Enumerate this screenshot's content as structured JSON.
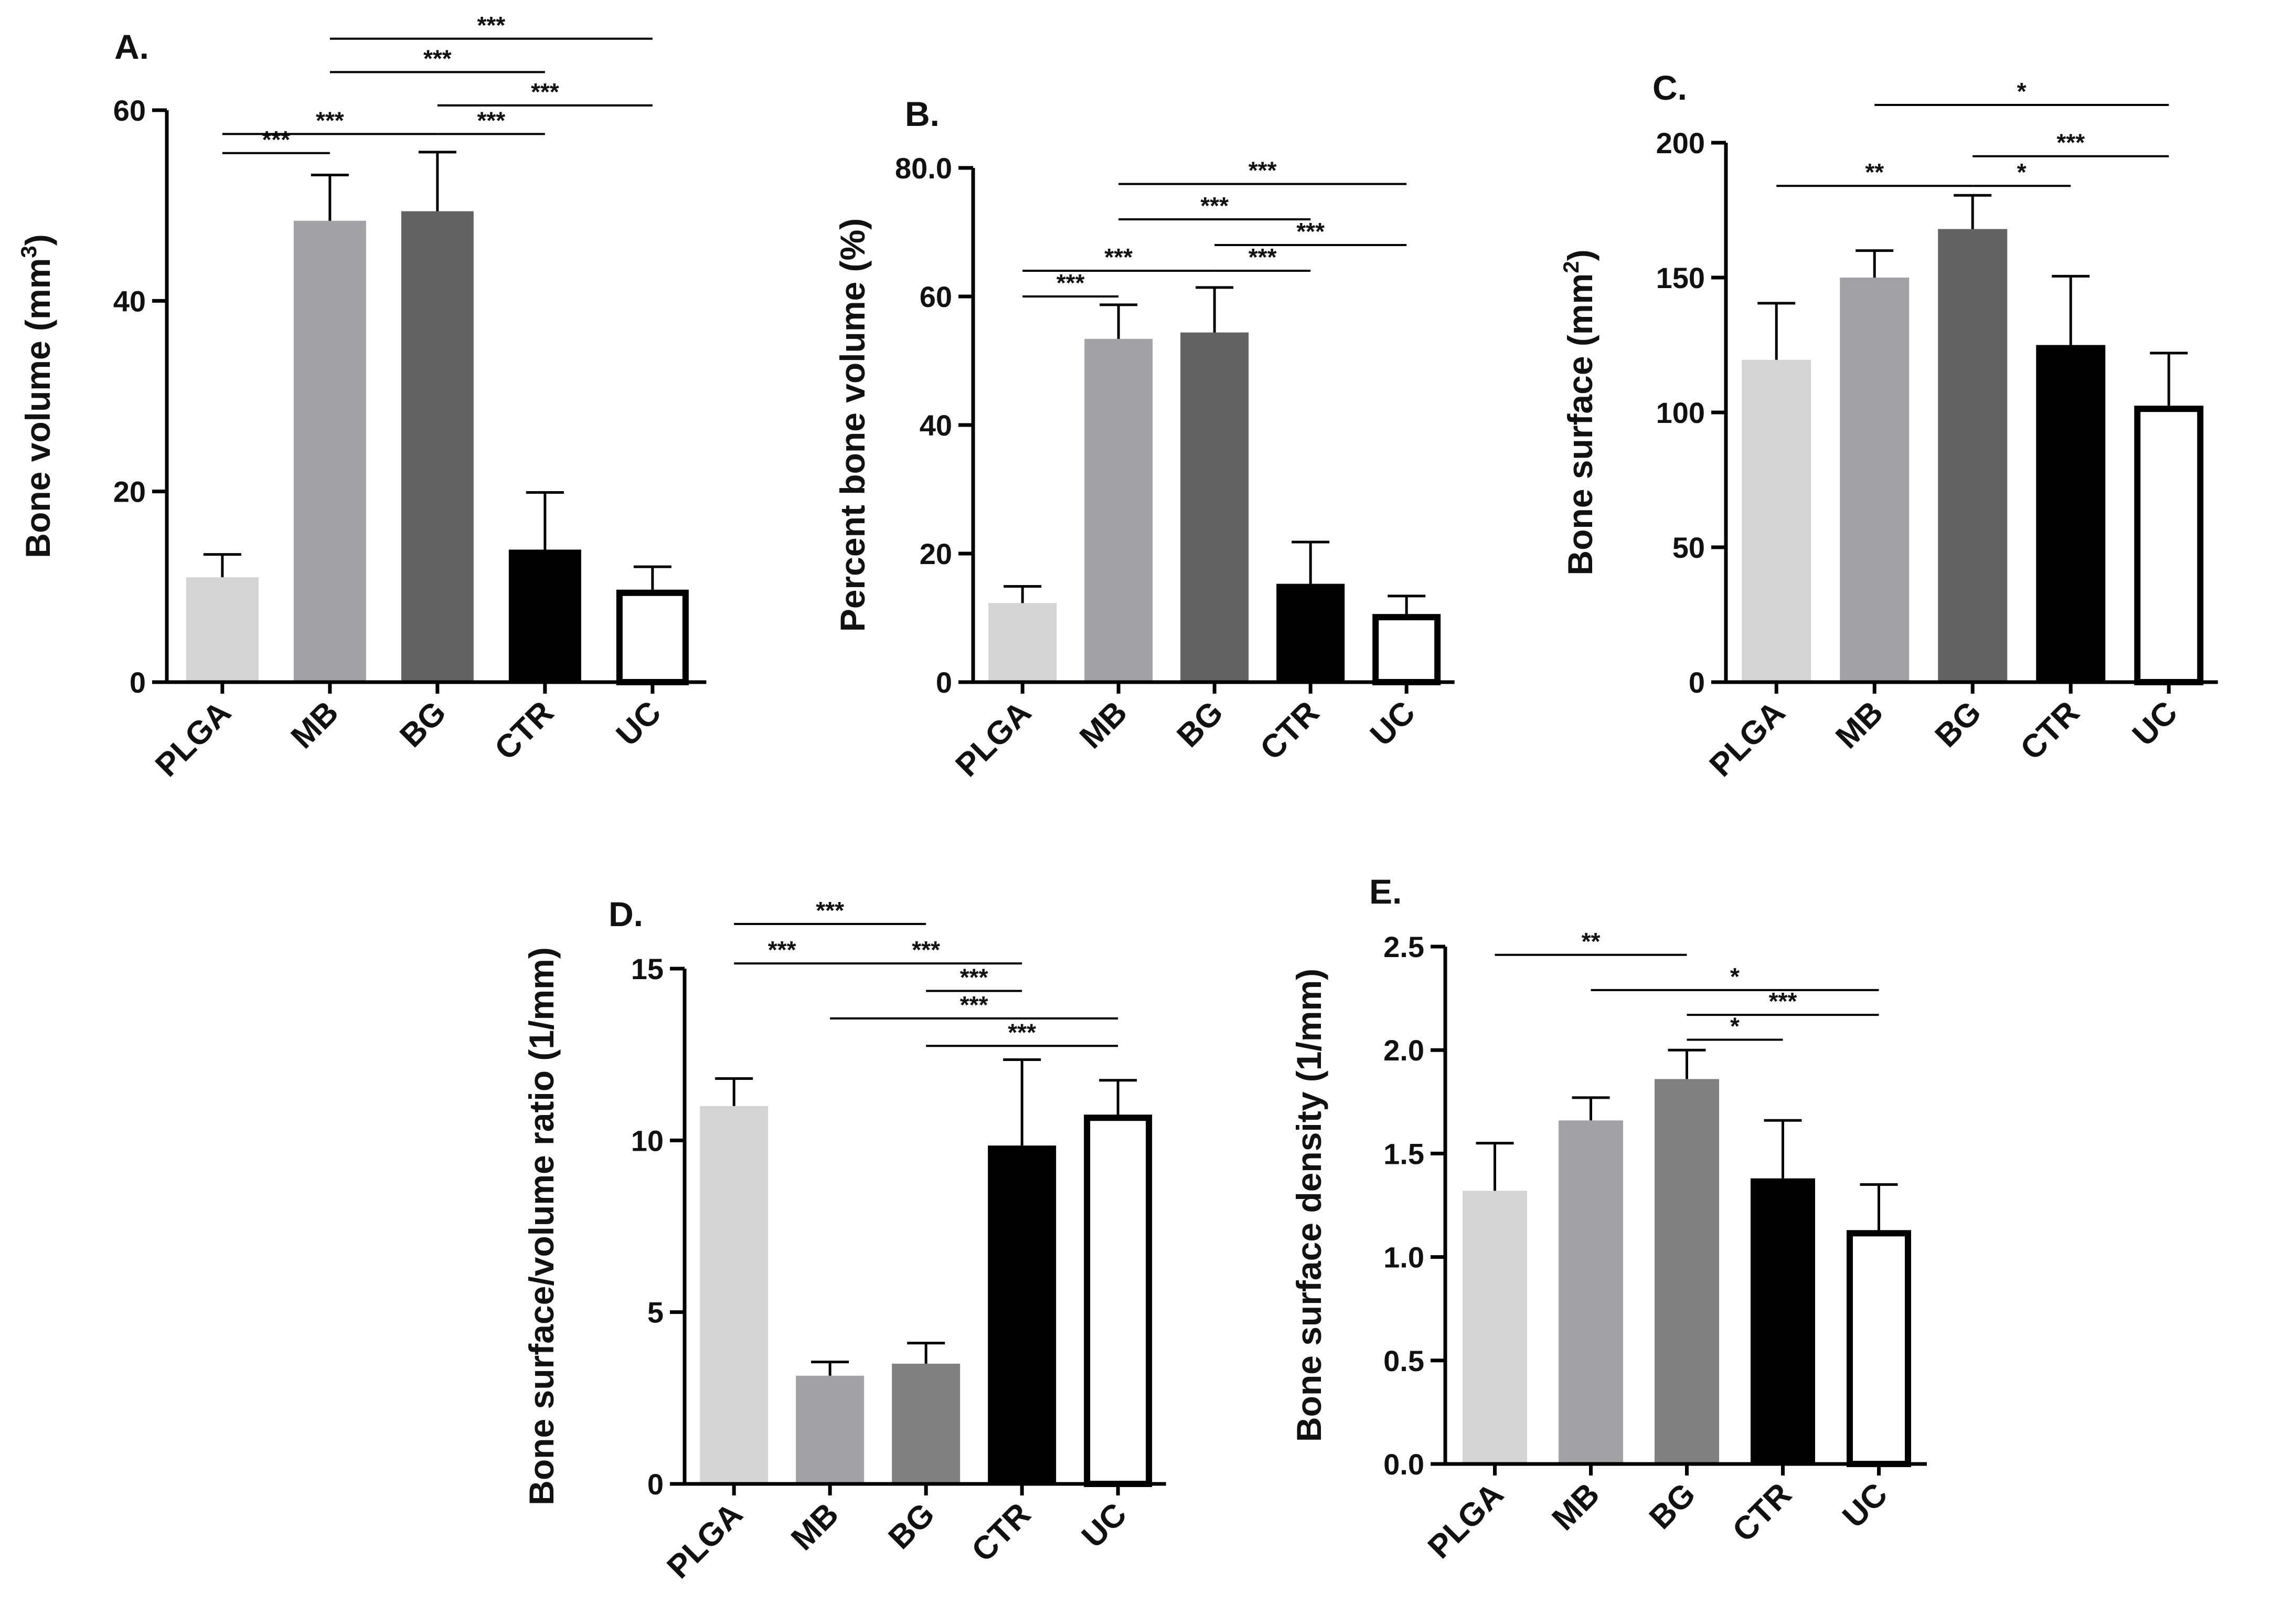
{
  "chart_data": [
    {
      "panel": "A.",
      "type": "bar",
      "ylabel": "Bone volume (mm",
      "ylabel_sup": "3",
      "ylabel_suffix": ")",
      "ylim": [
        0,
        60
      ],
      "yticks": [
        0,
        20,
        40,
        60
      ],
      "ytick_labels": [
        "0",
        "20",
        "40",
        "60"
      ],
      "categories": [
        "PLGA",
        "MB",
        "BG",
        "CTR",
        "UC"
      ],
      "values": [
        11.0,
        48.4,
        49.4,
        13.9,
        9.7
      ],
      "errors": [
        2.4,
        4.8,
        6.2,
        6.0,
        2.4
      ],
      "colors": [
        "#d4d4d4",
        "#a2a2a6",
        "#636363",
        "#000000",
        "#ffffff"
      ],
      "significance": [
        {
          "from": 0,
          "to": 1,
          "y": 55.5,
          "label": "***"
        },
        {
          "from": 0,
          "to": 2,
          "y": 57.5,
          "label": "***"
        },
        {
          "from": 2,
          "to": 3,
          "y": 57.5,
          "label": "***"
        },
        {
          "from": 2,
          "to": 4,
          "y": 60.5,
          "label": "***"
        },
        {
          "from": 1,
          "to": 3,
          "y": 64.0,
          "label": "***"
        },
        {
          "from": 1,
          "to": 4,
          "y": 67.5,
          "label": "***"
        }
      ]
    },
    {
      "panel": "B.",
      "type": "bar",
      "ylabel": "Percent bone volume (%)",
      "ylabel_sup": "",
      "ylabel_suffix": "",
      "ylim": [
        0,
        80
      ],
      "yticks": [
        0,
        20,
        40,
        60,
        80
      ],
      "ytick_labels": [
        "0",
        "20",
        "40",
        "60",
        "80.0"
      ],
      "categories": [
        "PLGA",
        "MB",
        "BG",
        "CTR",
        "UC"
      ],
      "values": [
        12.3,
        53.4,
        54.4,
        15.3,
        10.6
      ],
      "errors": [
        2.6,
        5.3,
        7.0,
        6.5,
        2.8
      ],
      "colors": [
        "#d4d4d4",
        "#a2a2a6",
        "#636363",
        "#000000",
        "#ffffff"
      ],
      "significance": [
        {
          "from": 0,
          "to": 1,
          "y": 60.0,
          "label": "***"
        },
        {
          "from": 0,
          "to": 2,
          "y": 64.0,
          "label": "***"
        },
        {
          "from": 2,
          "to": 3,
          "y": 64.0,
          "label": "***"
        },
        {
          "from": 2,
          "to": 4,
          "y": 68.0,
          "label": "***"
        },
        {
          "from": 1,
          "to": 3,
          "y": 72.0,
          "label": "***"
        },
        {
          "from": 1,
          "to": 4,
          "y": 77.5,
          "label": "***"
        }
      ]
    },
    {
      "panel": "C.",
      "type": "bar",
      "ylabel": "Bone surface (mm",
      "ylabel_sup": "2",
      "ylabel_suffix": ")",
      "ylim": [
        0,
        200
      ],
      "yticks": [
        0,
        50,
        100,
        150,
        200
      ],
      "ytick_labels": [
        "0",
        "50",
        "100",
        "150",
        "200"
      ],
      "categories": [
        "PLGA",
        "MB",
        "BG",
        "CTR",
        "UC"
      ],
      "values": [
        119.5,
        150.0,
        168.0,
        125.0,
        102.5
      ],
      "errors": [
        21.0,
        10.0,
        12.5,
        25.5,
        19.5
      ],
      "colors": [
        "#d4d4d4",
        "#a2a2a6",
        "#636363",
        "#000000",
        "#ffffff"
      ],
      "significance": [
        {
          "from": 0,
          "to": 2,
          "y": 184.0,
          "label": "**"
        },
        {
          "from": 2,
          "to": 3,
          "y": 184.0,
          "label": "*"
        },
        {
          "from": 2,
          "to": 4,
          "y": 195.0,
          "label": "***"
        },
        {
          "from": 1,
          "to": 4,
          "y": 214.0,
          "label": "*"
        }
      ]
    },
    {
      "panel": "D.",
      "type": "bar",
      "ylabel": "Bone surface/volume ratio (1/mm)",
      "ylabel_sup": "",
      "ylabel_suffix": "",
      "ylim": [
        0,
        15
      ],
      "yticks": [
        0,
        5,
        10,
        15
      ],
      "ytick_labels": [
        "0",
        "5",
        "10",
        "15"
      ],
      "categories": [
        "PLGA",
        "MB",
        "BG",
        "CTR",
        "UC"
      ],
      "values": [
        11.0,
        3.15,
        3.5,
        9.85,
        10.75
      ],
      "errors": [
        0.8,
        0.4,
        0.6,
        2.5,
        1.0
      ],
      "colors": [
        "#d4d4d4",
        "#a2a2a6",
        "#808080",
        "#000000",
        "#ffffff"
      ],
      "significance": [
        {
          "from": 0,
          "to": 1,
          "y": 15.15,
          "label": "***"
        },
        {
          "from": 1,
          "to": 3,
          "y": 15.15,
          "label": "***"
        },
        {
          "from": 0,
          "to": 2,
          "y": 16.3,
          "label": "***"
        },
        {
          "from": 2,
          "to": 3,
          "y": 14.35,
          "label": "***"
        },
        {
          "from": 1,
          "to": 4,
          "y": 13.55,
          "label": "***"
        },
        {
          "from": 2,
          "to": 4,
          "y": 12.75,
          "label": "***"
        }
      ]
    },
    {
      "panel": "E.",
      "type": "bar",
      "ylabel": "Bone surface density (1/mm)",
      "ylabel_sup": "",
      "ylabel_suffix": "",
      "ylim": [
        0,
        2.5
      ],
      "yticks": [
        0,
        0.5,
        1.0,
        1.5,
        2.0,
        2.5
      ],
      "ytick_labels": [
        "0.0",
        "0.5",
        "1.0",
        "1.5",
        "2.0",
        "2.5"
      ],
      "categories": [
        "PLGA",
        "MB",
        "BG",
        "CTR",
        "UC"
      ],
      "values": [
        1.32,
        1.66,
        1.86,
        1.38,
        1.13
      ],
      "errors": [
        0.23,
        0.11,
        0.14,
        0.28,
        0.22
      ],
      "colors": [
        "#d4d4d4",
        "#a2a2a6",
        "#808080",
        "#000000",
        "#ffffff"
      ],
      "significance": [
        {
          "from": 0,
          "to": 2,
          "y": 2.46,
          "label": "**"
        },
        {
          "from": 1,
          "to": 4,
          "y": 2.29,
          "label": "*"
        },
        {
          "from": 2,
          "to": 4,
          "y": 2.17,
          "label": "***"
        },
        {
          "from": 2,
          "to": 3,
          "y": 2.05,
          "label": "*"
        }
      ]
    }
  ]
}
